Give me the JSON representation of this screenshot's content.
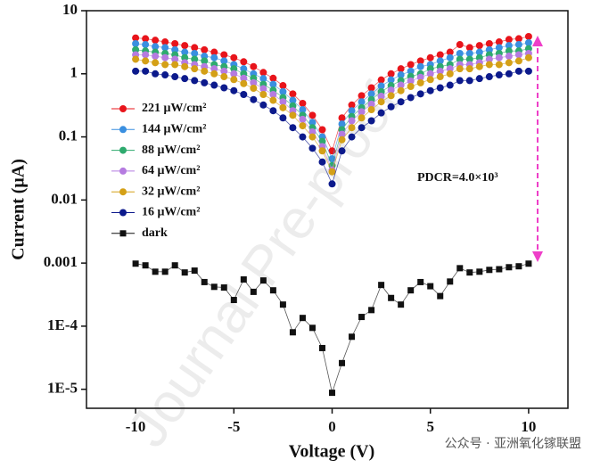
{
  "chart_data": {
    "type": "scatter",
    "xlabel": "Voltage (V)",
    "ylabel": "Current (μA)",
    "annotation": "PDCR=4.0×10³",
    "watermark": "Journal Pre-proof",
    "footer": "公众号 · 亚洲氧化镓联盟",
    "log_y": true,
    "legend": "upper left",
    "xlim": [
      -12.5,
      12
    ],
    "xticks": [
      -10,
      -5,
      0,
      5,
      10
    ],
    "ylim": [
      5e-06,
      10
    ],
    "yticks": [
      10,
      1,
      0.1,
      0.01,
      0.001,
      {
        "value": 0.0001,
        "label": "1E-4"
      },
      {
        "value": 1e-05,
        "label": "1E-5"
      }
    ],
    "x": [
      -10,
      -9.5,
      -9,
      -8.5,
      -8,
      -7.5,
      -7,
      -6.5,
      -6,
      -5.5,
      -5,
      -4.5,
      -4,
      -3.5,
      -3,
      -2.5,
      -2,
      -1.5,
      -1,
      -0.5,
      0,
      0.5,
      1,
      1.5,
      2,
      2.5,
      3,
      3.5,
      4,
      4.5,
      5,
      5.5,
      6,
      6.5,
      7,
      7.5,
      8,
      8.5,
      9,
      9.5,
      10
    ],
    "series": [
      {
        "name": "221 μW/cm²",
        "color": "#e8141b",
        "marker": "circle",
        "values": [
          3.7,
          3.6,
          3.4,
          3.2,
          3.0,
          2.8,
          2.6,
          2.4,
          2.2,
          2.0,
          1.8,
          1.55,
          1.3,
          1.05,
          0.85,
          0.65,
          0.48,
          0.34,
          0.22,
          0.13,
          0.06,
          0.2,
          0.32,
          0.45,
          0.6,
          0.8,
          1.0,
          1.2,
          1.4,
          1.6,
          1.8,
          2.0,
          2.2,
          2.9,
          2.6,
          2.8,
          3.0,
          3.2,
          3.5,
          3.6,
          3.9
        ]
      },
      {
        "name": "144 μW/cm²",
        "color": "#3a8fe0",
        "marker": "circle",
        "values": [
          3.0,
          2.9,
          2.7,
          2.6,
          2.4,
          2.2,
          2.1,
          1.9,
          1.8,
          1.6,
          1.4,
          1.2,
          1.0,
          0.84,
          0.68,
          0.52,
          0.38,
          0.27,
          0.17,
          0.1,
          0.045,
          0.16,
          0.26,
          0.36,
          0.48,
          0.64,
          0.8,
          0.96,
          1.1,
          1.3,
          1.4,
          1.6,
          1.8,
          2.1,
          2.1,
          2.2,
          2.4,
          2.6,
          2.8,
          2.9,
          3.1
        ]
      },
      {
        "name": "88 μW/cm²",
        "color": "#2eaa6e",
        "marker": "circle",
        "values": [
          2.4,
          2.3,
          2.2,
          2.1,
          2.0,
          1.8,
          1.7,
          1.6,
          1.4,
          1.3,
          1.2,
          1.0,
          0.85,
          0.68,
          0.55,
          0.42,
          0.31,
          0.22,
          0.14,
          0.085,
          0.035,
          0.13,
          0.21,
          0.29,
          0.39,
          0.52,
          0.65,
          0.78,
          0.91,
          1.0,
          1.2,
          1.3,
          1.4,
          1.7,
          1.7,
          1.8,
          2.0,
          2.1,
          2.3,
          2.3,
          2.5
        ]
      },
      {
        "name": "64 μW/cm²",
        "color": "#b57be0",
        "marker": "circle",
        "values": [
          2.0,
          2.0,
          1.9,
          1.8,
          1.7,
          1.5,
          1.4,
          1.3,
          1.2,
          1.1,
          1.0,
          0.85,
          0.72,
          0.58,
          0.47,
          0.36,
          0.26,
          0.19,
          0.12,
          0.07,
          0.03,
          0.11,
          0.18,
          0.25,
          0.33,
          0.44,
          0.55,
          0.66,
          0.77,
          0.88,
          1.0,
          1.1,
          1.2,
          1.4,
          1.4,
          1.5,
          1.7,
          1.8,
          1.9,
          2.0,
          2.1
        ]
      },
      {
        "name": "32 μW/cm²",
        "color": "#d4a017",
        "marker": "circle",
        "values": [
          1.7,
          1.6,
          1.5,
          1.4,
          1.4,
          1.3,
          1.2,
          1.1,
          1.0,
          0.9,
          0.81,
          0.7,
          0.59,
          0.47,
          0.38,
          0.29,
          0.22,
          0.15,
          0.1,
          0.06,
          0.028,
          0.09,
          0.14,
          0.2,
          0.27,
          0.36,
          0.45,
          0.54,
          0.63,
          0.72,
          0.81,
          0.9,
          1.0,
          1.2,
          1.2,
          1.3,
          1.4,
          1.4,
          1.5,
          1.6,
          1.8
        ]
      },
      {
        "name": "16 μW/cm²",
        "color": "#0c1a8c",
        "marker": "circle",
        "values": [
          1.1,
          1.1,
          1.0,
          0.96,
          0.9,
          0.84,
          0.78,
          0.72,
          0.66,
          0.6,
          0.54,
          0.47,
          0.39,
          0.32,
          0.26,
          0.2,
          0.14,
          0.1,
          0.066,
          0.04,
          0.018,
          0.06,
          0.1,
          0.14,
          0.18,
          0.24,
          0.3,
          0.36,
          0.42,
          0.48,
          0.54,
          0.6,
          0.66,
          0.78,
          0.78,
          0.84,
          0.9,
          0.96,
          1.0,
          1.1,
          1.1
        ]
      },
      {
        "name": "dark",
        "color": "#111111",
        "marker": "square",
        "values": [
          0.00098,
          0.00092,
          0.00073,
          0.00073,
          0.00092,
          0.00071,
          0.00076,
          0.0005,
          0.00042,
          0.00041,
          0.00026,
          0.00055,
          0.00035,
          0.00053,
          0.00037,
          0.00022,
          8e-05,
          0.000135,
          9.4e-05,
          4.5e-05,
          8.8e-06,
          2.6e-05,
          6.8e-05,
          0.00014,
          0.00018,
          0.00045,
          0.00028,
          0.00022,
          0.00037,
          0.0005,
          0.00043,
          0.0003,
          0.00051,
          0.00083,
          0.00071,
          0.00073,
          0.00078,
          0.0008,
          0.00086,
          0.00089,
          0.00098
        ]
      }
    ]
  }
}
